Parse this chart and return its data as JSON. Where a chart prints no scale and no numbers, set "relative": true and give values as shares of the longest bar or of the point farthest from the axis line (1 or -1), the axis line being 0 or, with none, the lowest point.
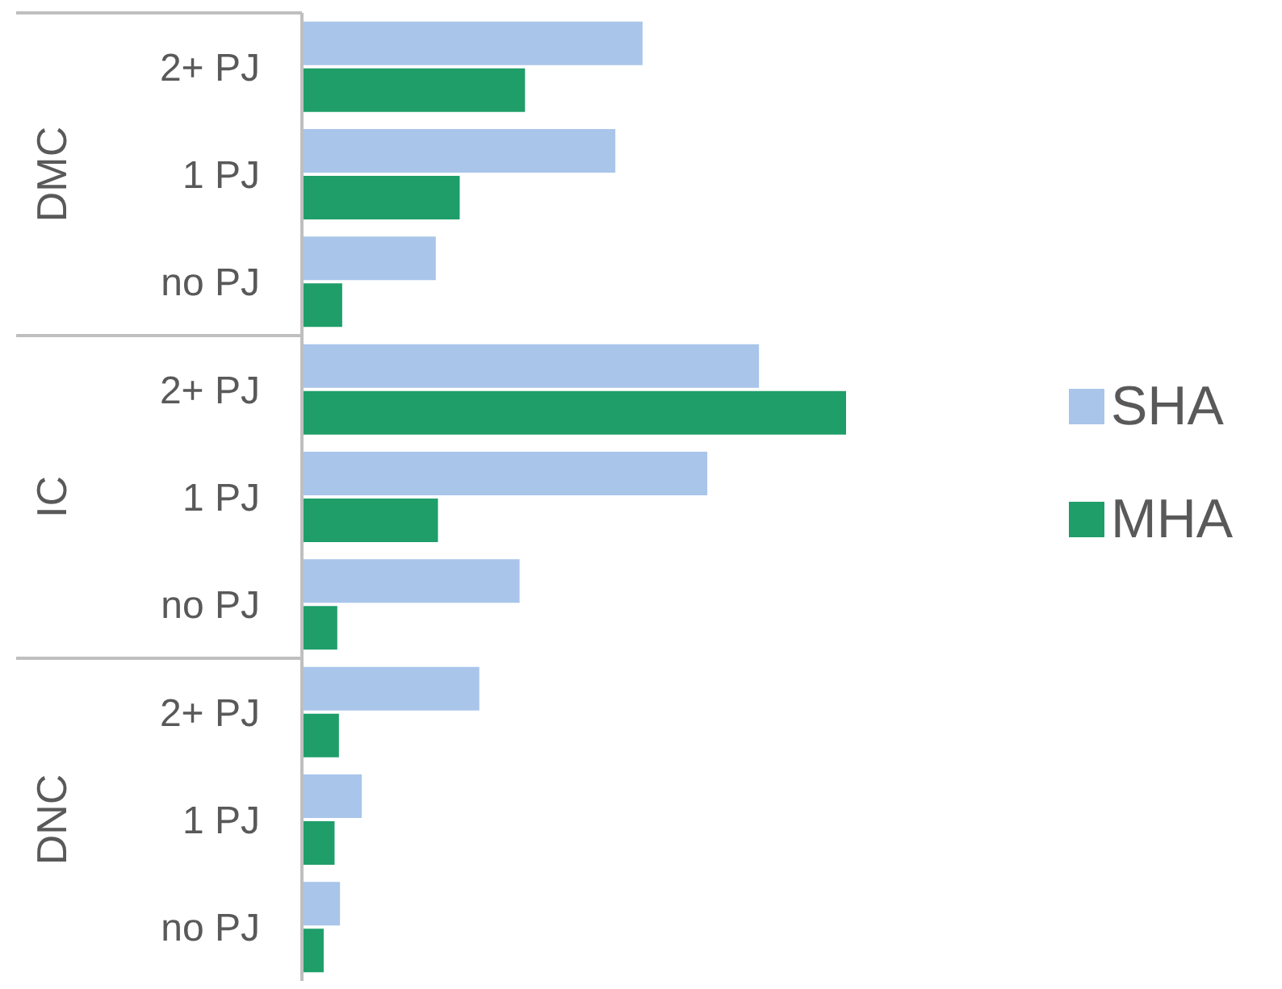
{
  "chart_data": {
    "type": "bar",
    "orientation": "horizontal",
    "relative": true,
    "categories": [
      "2+ PJ",
      "1 PJ",
      "no PJ",
      "2+ PJ",
      "1 PJ",
      "no PJ",
      "2+ PJ",
      "1 PJ",
      "no PJ"
    ],
    "annotations": [
      "DMC",
      "IC",
      "DNC"
    ],
    "series": [
      {
        "name": "SHA",
        "color": "#a9c5ea",
        "values": [
          0.626,
          0.576,
          0.246,
          0.84,
          0.745,
          0.4,
          0.326,
          0.11,
          0.07
        ]
      },
      {
        "name": "MHA",
        "color": "#1f9e6a",
        "values": [
          0.41,
          0.29,
          0.074,
          1.0,
          0.25,
          0.065,
          0.068,
          0.06,
          0.04
        ]
      }
    ],
    "legend": "right"
  }
}
